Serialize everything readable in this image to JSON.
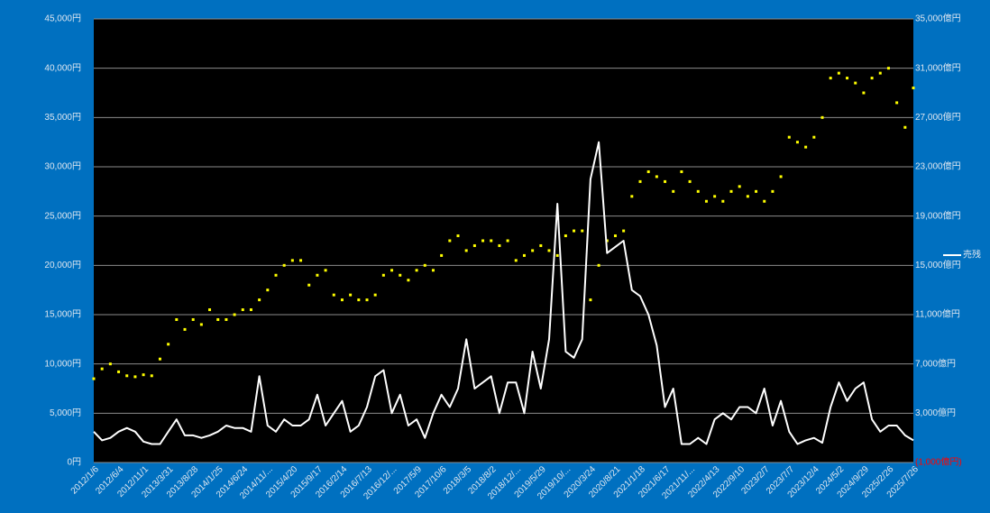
{
  "chart_data": {
    "type": "combo",
    "categories": [
      "2012/1/6",
      null,
      null,
      "2012/6/4",
      null,
      null,
      "2012/11/1",
      null,
      null,
      "2013/3/31",
      null,
      null,
      "2013/8/28",
      null,
      null,
      "2014/1/25",
      null,
      null,
      "2014/6/24",
      null,
      null,
      "2014/11/...",
      null,
      null,
      "2015/4/20",
      null,
      null,
      "2015/9/17",
      null,
      null,
      "2016/2/14",
      null,
      null,
      "2016/7/13",
      null,
      null,
      "2016/12/...",
      null,
      null,
      "2017/5/9",
      null,
      null,
      "2017/10/6",
      null,
      null,
      "2018/3/5",
      null,
      null,
      "2018/8/2",
      null,
      null,
      "2018/12/...",
      null,
      null,
      "2019/5/29",
      null,
      null,
      "2019/10/...",
      null,
      null,
      "2020/3/24",
      null,
      null,
      "2020/8/21",
      null,
      null,
      "2021/1/18",
      null,
      null,
      "2021/6/17",
      null,
      null,
      "2021/11/...",
      null,
      null,
      "2022/4/13",
      null,
      null,
      "2022/9/10",
      null,
      null,
      "2023/2/7",
      null,
      null,
      "2023/7/7",
      null,
      null,
      "2023/12/4",
      null,
      null,
      "2024/5/2",
      null,
      null,
      "2024/9/29",
      null,
      null,
      "2025/2/26",
      null,
      null,
      "2025/7/26"
    ],
    "series": [
      {
        "color": "#ffff00",
        "mode": "markers",
        "axis": "y",
        "values": [
          8500,
          9500,
          10000,
          9200,
          8800,
          8700,
          8900,
          8800,
          10500,
          12000,
          14500,
          13500,
          14500,
          14000,
          15500,
          14500,
          14500,
          15000,
          15500,
          15500,
          16500,
          17500,
          19000,
          20000,
          20500,
          20500,
          18000,
          19000,
          19500,
          17000,
          16500,
          17000,
          16500,
          16500,
          17000,
          19000,
          19500,
          19000,
          18500,
          19500,
          20000,
          19500,
          21000,
          22500,
          23000,
          21500,
          22000,
          22500,
          22500,
          22000,
          22500,
          20500,
          21000,
          21500,
          22000,
          21500,
          21000,
          23000,
          23500,
          23500,
          16500,
          20000,
          22500,
          23000,
          23500,
          27000,
          28500,
          29500,
          29000,
          28500,
          27500,
          29500,
          28500,
          27500,
          26500,
          27000,
          26500,
          27500,
          28000,
          27000,
          27500,
          26500,
          27500,
          29000,
          33000,
          32500,
          32000,
          33000,
          35000,
          39000,
          39500,
          39000,
          38500,
          37500,
          39000,
          39500,
          40000,
          36500,
          34000,
          38000
        ]
      },
      {
        "name": "売残",
        "color": "#ffffff",
        "mode": "line",
        "axis": "y2",
        "values": [
          1500,
          800,
          1000,
          1500,
          1800,
          1500,
          700,
          500,
          500,
          1500,
          2500,
          1200,
          1200,
          1000,
          1200,
          1500,
          2000,
          1800,
          1800,
          1500,
          6000,
          2000,
          1500,
          2500,
          2000,
          2000,
          2500,
          4500,
          2000,
          3000,
          4000,
          1500,
          2000,
          3500,
          6000,
          6500,
          3000,
          4500,
          2000,
          2500,
          1000,
          3000,
          4500,
          3500,
          5000,
          9000,
          5000,
          5500,
          6000,
          3000,
          5500,
          5500,
          3000,
          8000,
          5000,
          9000,
          20000,
          8000,
          7500,
          9000,
          22000,
          25000,
          16000,
          16500,
          17000,
          13000,
          12500,
          11000,
          8500,
          3500,
          5000,
          500,
          500,
          1000,
          500,
          2500,
          3000,
          2500,
          3500,
          3500,
          3000,
          5000,
          2000,
          4000,
          1500,
          500,
          800,
          1000,
          600,
          3500,
          5500,
          4000,
          5000,
          5500,
          2500,
          1500,
          2000,
          2000,
          1200,
          800
        ]
      }
    ],
    "ylim": [
      0,
      45000
    ],
    "yticks": [
      {
        "value": 0,
        "label": "0円"
      },
      {
        "value": 5000,
        "label": "5,000円"
      },
      {
        "value": 10000,
        "label": "10,000円"
      },
      {
        "value": 15000,
        "label": "15,000円"
      },
      {
        "value": 20000,
        "label": "20,000円"
      },
      {
        "value": 25000,
        "label": "25,000円"
      },
      {
        "value": 30000,
        "label": "30,000円"
      },
      {
        "value": 35000,
        "label": "35,000円"
      },
      {
        "value": 40000,
        "label": "40,000円"
      },
      {
        "value": 45000,
        "label": "45,000円"
      }
    ],
    "y2lim": [
      -1000,
      35000
    ],
    "y2ticks": [
      {
        "value": -1000,
        "label": "(1,000億円)"
      },
      {
        "value": 3000,
        "label": "3,000億円"
      },
      {
        "value": 7000,
        "label": "7,000億円"
      },
      {
        "value": 11000,
        "label": "11,000億円"
      },
      {
        "value": 15000,
        "label": "15,000億円"
      },
      {
        "value": 19000,
        "label": "19,000億円"
      },
      {
        "value": 23000,
        "label": "23,000億円"
      },
      {
        "value": 27000,
        "label": "27,000億円"
      },
      {
        "value": 31000,
        "label": "31,000億円"
      },
      {
        "value": 35000,
        "label": "35,000億円"
      }
    ],
    "grid": true,
    "legend": "right"
  }
}
